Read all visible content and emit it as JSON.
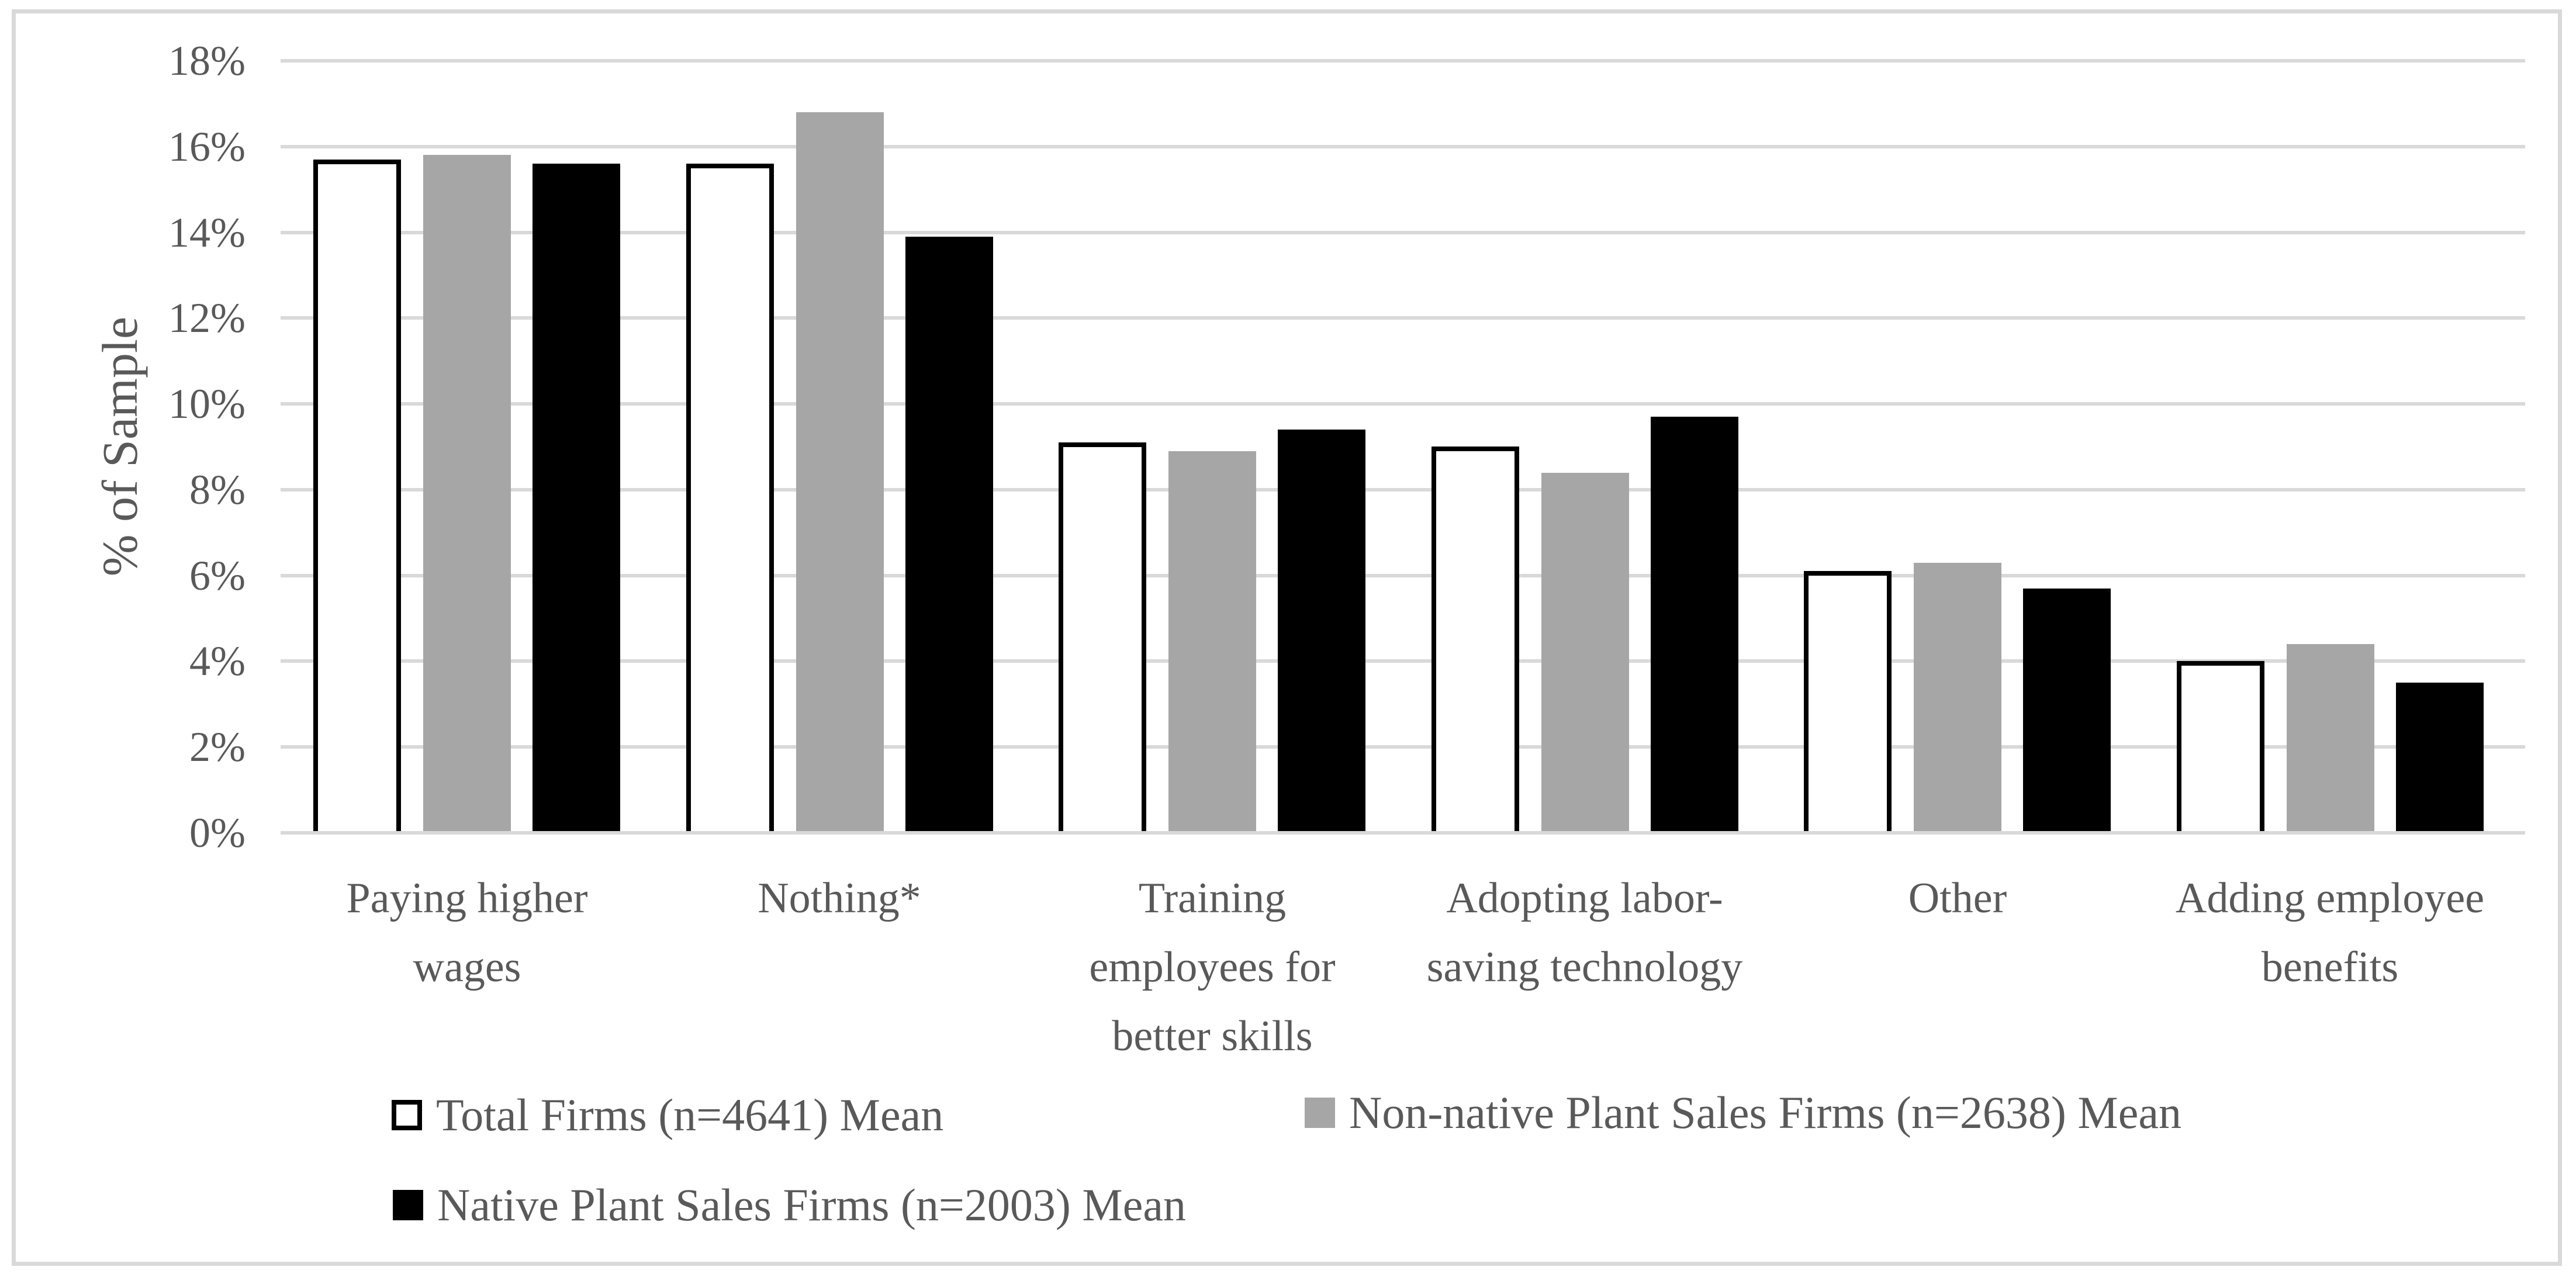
{
  "figure": {
    "background": "#FFFFFF",
    "border_color": "#D9D9D9"
  },
  "colors": {
    "gridline": "#D9D9D9",
    "text": "#595959",
    "total_firms_fill": "#FFFFFF",
    "total_firms_border": "#000000",
    "non_native_fill": "#A6A6A6",
    "native_fill": "#000000"
  },
  "chart_data": {
    "type": "bar",
    "title": "",
    "xlabel": "",
    "ylabel": "% of Sample",
    "ylim": [
      0,
      18
    ],
    "ytick_step": 2,
    "ytick_labels": [
      "18%",
      "16%",
      "14%",
      "12%",
      "10%",
      "8%",
      "6%",
      "4%",
      "2%",
      "0%"
    ],
    "grid": true,
    "legend_position": "bottom",
    "categories": [
      "Paying higher wages",
      "Nothing*",
      "Training employees for better skills",
      "Adopting labor-saving technology",
      "Other",
      "Adding employee benefits"
    ],
    "category_label_lines": [
      [
        "Paying higher",
        "wages"
      ],
      [
        "Nothing*"
      ],
      [
        "Training",
        "employees for",
        "better skills"
      ],
      [
        "Adopting labor-",
        "saving technology"
      ],
      [
        "Other"
      ],
      [
        "Adding employee",
        "benefits"
      ]
    ],
    "series": [
      {
        "name": "Total Firms (n=4641) Mean",
        "fill": "#FFFFFF",
        "border": "#000000",
        "values": [
          15.7,
          15.6,
          9.1,
          9.0,
          6.1,
          4.0
        ]
      },
      {
        "name": "Non-native Plant Sales Firms (n=2638) Mean",
        "fill": "#A6A6A6",
        "border": "#A6A6A6",
        "values": [
          15.8,
          16.8,
          8.9,
          8.4,
          6.3,
          4.4
        ]
      },
      {
        "name": "Native Plant Sales Firms (n=2003) Mean",
        "fill": "#000000",
        "border": "#000000",
        "values": [
          15.6,
          13.9,
          9.4,
          9.7,
          5.7,
          3.5
        ]
      }
    ]
  }
}
